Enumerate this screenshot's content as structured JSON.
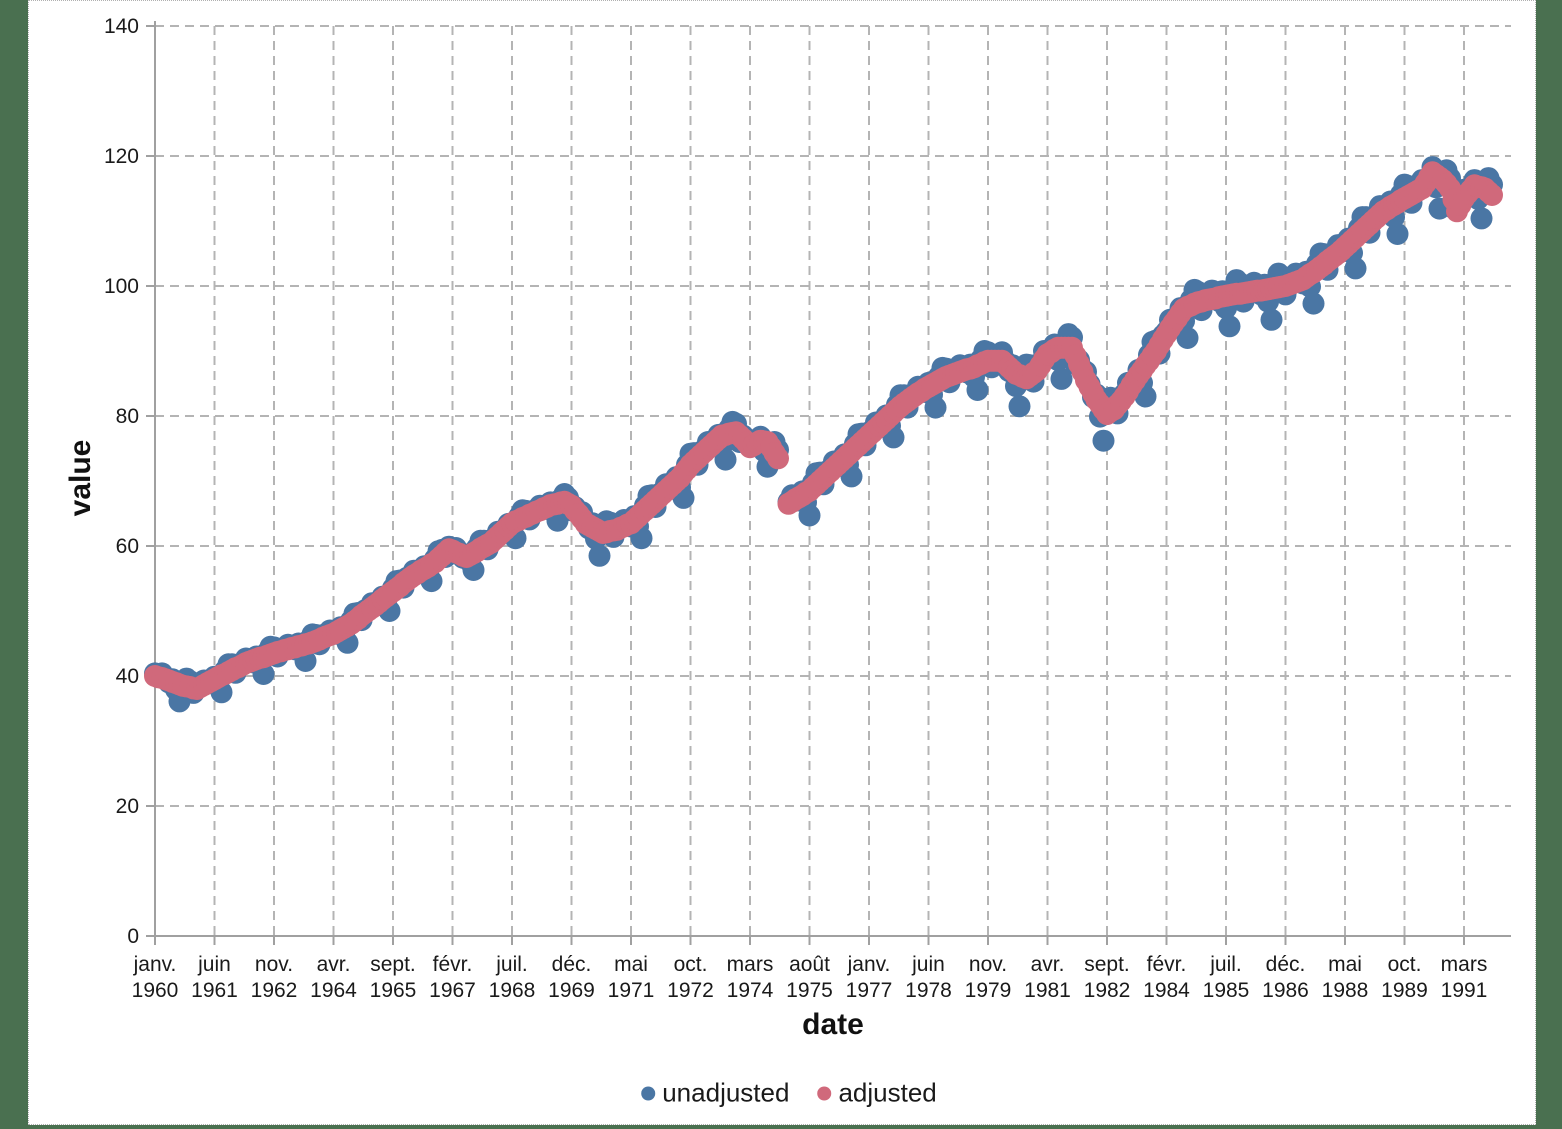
{
  "page": {
    "background_color": "#4a7050",
    "panel_color": "#ffffff"
  },
  "chart_data": {
    "type": "scatter",
    "title": "",
    "xlabel": "date",
    "ylabel": "value",
    "ylim": [
      0,
      140
    ],
    "y_ticks": [
      0,
      20,
      40,
      60,
      80,
      100,
      120,
      140
    ],
    "grid": "dashed-both-directions",
    "legend_position": "bottom-center",
    "colors": {
      "grid": "#b4b4b4",
      "axis": "#a0a0a0",
      "tick_text": "#1a1a1a"
    },
    "x_unit": "monthly, starting janv. 1960, tick every 17 months",
    "x_ticks": {
      "positions": [
        0,
        17,
        34,
        51,
        68,
        85,
        102,
        119,
        136,
        153,
        170,
        187,
        204,
        221,
        238,
        255,
        272,
        289,
        306,
        323,
        340,
        357,
        374
      ],
      "months": [
        "janv.",
        "juin",
        "nov.",
        "avr.",
        "sept.",
        "févr.",
        "juil.",
        "déc.",
        "mai",
        "oct.",
        "mars",
        "août",
        "janv.",
        "juin",
        "nov.",
        "avr.",
        "sept.",
        "févr.",
        "juil.",
        "déc.",
        "mai",
        "oct.",
        "mars"
      ],
      "years": [
        "1960",
        "1961",
        "1962",
        "1964",
        "1965",
        "1967",
        "1968",
        "1969",
        "1971",
        "1972",
        "1974",
        "1975",
        "1977",
        "1978",
        "1979",
        "1981",
        "1982",
        "1984",
        "1985",
        "1986",
        "1988",
        "1989",
        "1991"
      ]
    },
    "series": [
      {
        "name": "unadjusted",
        "color": "#4a76a4",
        "values": [
          40.4,
          40,
          40.4,
          39.7,
          39,
          39.5,
          37.9,
          36.1,
          39,
          39.6,
          39.2,
          37.4,
          38.4,
          38.5,
          39.3,
          39.1,
          38.9,
          39.9,
          38.8,
          37.5,
          40.8,
          41.8,
          41.8,
          40.5,
          41.8,
          41.9,
          42.7,
          42.4,
          42.1,
          43,
          41.8,
          40.3,
          43.6,
          44.5,
          44.4,
          43,
          44.2,
          44.2,
          44.8,
          44.5,
          44.1,
          45,
          43.7,
          42.3,
          45.5,
          46.4,
          46.3,
          44.9,
          46.3,
          46.3,
          47,
          46.7,
          46.5,
          47.5,
          46.4,
          45.1,
          48.5,
          49.6,
          49.7,
          48.6,
          50.1,
          50.3,
          51.2,
          51.1,
          51,
          52.2,
          51.2,
          50,
          53.5,
          54.6,
          54.7,
          53.6,
          55.1,
          55.3,
          56.2,
          56,
          55.9,
          56.9,
          55.8,
          54.6,
          58,
          59.2,
          59.4,
          58.3,
          59.9,
          59.5,
          59.7,
          59,
          58.2,
          58.7,
          57.6,
          56.3,
          59.7,
          60.8,
          60.8,
          59.5,
          60.9,
          61.2,
          62.2,
          62.2,
          62.2,
          63.4,
          62.5,
          61.2,
          64.5,
          65.5,
          65.4,
          64.1,
          65.4,
          65.5,
          66.2,
          66,
          65.7,
          66.7,
          65.4,
          63.9,
          67.2,
          68,
          67.4,
          65.5,
          66,
          65.2,
          65.2,
          63.8,
          62.7,
          63.5,
          61.1,
          58.5,
          62.7,
          63.8,
          63.6,
          61.4,
          63,
          63.1,
          64,
          63.6,
          63,
          64.6,
          63,
          61.2,
          66.2,
          67.7,
          67.8,
          66,
          68,
          68.3,
          69.5,
          69.3,
          69,
          70.6,
          69,
          67.4,
          72.5,
          74.2,
          74.3,
          72.5,
          74.5,
          74.8,
          76,
          75.8,
          75.5,
          77.1,
          75.5,
          73.3,
          78,
          79.1,
          78.8,
          76,
          77,
          76.2,
          76.2,
          75.8,
          75.4,
          76.8,
          74.6,
          72.2,
          75.9,
          76,
          74.8,
          null,
          null,
          66.8,
          67.8,
          67.5,
          67,
          68.4,
          66.7,
          64.7,
          69.7,
          71.2,
          71.3,
          69.5,
          71.5,
          71.8,
          73,
          72.8,
          72.5,
          74.1,
          72.5,
          70.7,
          75.7,
          77.2,
          77.3,
          75.5,
          77.5,
          77.8,
          79,
          78.8,
          78.5,
          80.1,
          78.5,
          76.7,
          81.7,
          83.2,
          83.2,
          81.3,
          83.2,
          83.4,
          84.5,
          84.1,
          83.7,
          85.1,
          83.3,
          81.3,
          86.1,
          87.4,
          87.3,
          85.2,
          86.9,
          86.9,
          87.8,
          87.3,
          86.7,
          87.9,
          86,
          84,
          88.7,
          90,
          89.8,
          87.5,
          89.1,
          88.9,
          89.8,
          88.4,
          86.9,
          87.8,
          84.6,
          81.5,
          86.9,
          87.9,
          87.8,
          85.3,
          87.6,
          88.2,
          90,
          89.9,
          89.2,
          91,
          88.6,
          85.7,
          91.4,
          92.6,
          92.1,
          88,
          88.6,
          87.2,
          86.8,
          84.9,
          82.9,
          83.3,
          79.9,
          76.2,
          81.2,
          82.8,
          82.6,
          80.4,
          82.9,
          83.4,
          85.1,
          85.1,
          84.9,
          87.1,
          85.1,
          83,
          89.4,
          91.4,
          91.6,
          89.6,
          92.4,
          93,
          94.8,
          94.7,
          94.4,
          96.6,
          94.6,
          92,
          97.9,
          99.4,
          99.1,
          96.3,
          98.4,
          98.3,
          99.3,
          98.5,
          97.7,
          99.2,
          96.6,
          93.8,
          99.6,
          100.9,
          100.4,
          97.6,
          99.6,
          99.5,
          100.5,
          99.7,
          98.7,
          100.2,
          97.6,
          94.8,
          100.6,
          101.9,
          101.5,
          98.7,
          100.8,
          100.8,
          101.9,
          101.2,
          100.4,
          102.2,
          99.9,
          97.3,
          103.4,
          105,
          104.9,
          102.5,
          104.8,
          105,
          106.3,
          105.9,
          105.4,
          107.3,
          105.1,
          102.7,
          108.9,
          110.6,
          110.6,
          108.2,
          110.6,
          110.9,
          112.3,
          111.9,
          111.2,
          113,
          110.6,
          108,
          114.1,
          115.6,
          115.4,
          112.8,
          115,
          115.1,
          116.3,
          116.2,
          116.1,
          118.3,
          115.2,
          111.9,
          117.2,
          117.8,
          116.6,
          112,
          112.1,
          112.9,
          114.8,
          114.6,
          114.2,
          116.3,
          113.4,
          110.4,
          115.9,
          116.6,
          115.6
        ]
      },
      {
        "name": "adjusted",
        "color": "#d0697b",
        "values": [
          40,
          39.8,
          39.7,
          39.5,
          39.3,
          39.1,
          38.9,
          38.7,
          38.5,
          38.4,
          38.3,
          38.1,
          38,
          38.3,
          38.6,
          38.9,
          39.2,
          39.5,
          39.8,
          40.1,
          40.3,
          40.6,
          40.9,
          41.2,
          41.4,
          41.7,
          42,
          42.2,
          42.4,
          42.6,
          42.8,
          42.9,
          43.1,
          43.3,
          43.5,
          43.7,
          43.8,
          44,
          44.1,
          44.3,
          44.4,
          44.6,
          44.7,
          44.9,
          45,
          45.2,
          45.4,
          45.6,
          45.9,
          46.1,
          46.3,
          46.5,
          46.8,
          47.1,
          47.4,
          47.7,
          48,
          48.4,
          48.8,
          49.3,
          49.7,
          50.1,
          50.5,
          50.9,
          51.3,
          51.8,
          52.2,
          52.6,
          53,
          53.4,
          53.8,
          54.3,
          54.7,
          55.1,
          55.5,
          55.8,
          56.2,
          56.5,
          56.8,
          57.2,
          57.5,
          58,
          58.5,
          59,
          59.5,
          59.3,
          59,
          58.8,
          58.5,
          58.3,
          58.6,
          58.9,
          59.2,
          59.6,
          59.9,
          60.2,
          60.5,
          61,
          61.5,
          62,
          62.5,
          63,
          63.5,
          63.8,
          64,
          64.3,
          64.5,
          64.8,
          65,
          65.3,
          65.5,
          65.8,
          66,
          66.3,
          66.4,
          66.5,
          66.7,
          66.8,
          66.5,
          66.2,
          65.5,
          64.9,
          64.2,
          63.5,
          63.2,
          62.9,
          62.6,
          62.3,
          62,
          62.1,
          62.3,
          62.4,
          62.5,
          62.8,
          63,
          63.3,
          63.5,
          64,
          64.5,
          65,
          65.5,
          66,
          66.5,
          67,
          67.5,
          68,
          68.5,
          69,
          69.5,
          70,
          70.5,
          71.2,
          71.8,
          72.5,
          73,
          73.5,
          74,
          74.5,
          75,
          75.5,
          76,
          76.5,
          77,
          77.1,
          77.3,
          77.4,
          77.5,
          77,
          76.5,
          75.9,
          75.2,
          75.5,
          75.9,
          76.2,
          76.1,
          76,
          75.2,
          74.3,
          73.5,
          null,
          null,
          66.5,
          66.8,
          67.2,
          67.5,
          67.8,
          68.2,
          68.5,
          69,
          69.5,
          70,
          70.5,
          71,
          71.5,
          72,
          72.5,
          73,
          73.5,
          74,
          74.5,
          75,
          75.5,
          76,
          76.5,
          77,
          77.5,
          78,
          78.5,
          79,
          79.5,
          80,
          80.5,
          81,
          81.5,
          81.9,
          82.3,
          82.7,
          83.1,
          83.5,
          83.8,
          84.2,
          84.5,
          84.8,
          85.1,
          85.4,
          85.7,
          86,
          86.2,
          86.4,
          86.6,
          86.8,
          87,
          87.2,
          87.3,
          87.5,
          87.8,
          88,
          88.3,
          88.5,
          88.5,
          88.5,
          88.5,
          88.5,
          88,
          87.5,
          87,
          86.5,
          86.3,
          86,
          85.8,
          86.2,
          86.6,
          87,
          87.8,
          88.7,
          89.5,
          89.8,
          90.2,
          90.5,
          90.5,
          90.5,
          90.5,
          90.5,
          89.3,
          88,
          86.8,
          85.5,
          84.5,
          83.5,
          82.5,
          81.8,
          81,
          80.3,
          80.7,
          81,
          81.7,
          82.3,
          83,
          83.8,
          84.7,
          85.5,
          86.3,
          87,
          87.8,
          88.5,
          89.3,
          90,
          90.9,
          91.8,
          92.6,
          93.5,
          94.3,
          95,
          95.8,
          96.5,
          96.8,
          97,
          97.3,
          97.5,
          97.6,
          97.8,
          97.9,
          98,
          98.1,
          98.3,
          98.4,
          98.5,
          98.6,
          98.7,
          98.8,
          98.8,
          98.9,
          99,
          99.1,
          99.2,
          99.3,
          99.3,
          99.4,
          99.5,
          99.6,
          99.7,
          99.8,
          99.9,
          100,
          100.2,
          100.4,
          100.6,
          100.8,
          101,
          101.4,
          101.8,
          102.1,
          102.5,
          102.9,
          103.3,
          103.8,
          104.2,
          104.6,
          105,
          105.5,
          106,
          106.5,
          107,
          107.5,
          108,
          108.5,
          109,
          109.5,
          110,
          110.5,
          111,
          111.5,
          111.8,
          112.2,
          112.5,
          112.8,
          113.2,
          113.5,
          113.8,
          114.1,
          114.4,
          114.7,
          115,
          115.8,
          116.7,
          117.5,
          117.1,
          116.7,
          116.3,
          115.7,
          115,
          113.3,
          111.5,
          112.5,
          113.5,
          114.2,
          114.8,
          115.5,
          115.3,
          115.2,
          115,
          114.5,
          114
        ]
      }
    ]
  }
}
